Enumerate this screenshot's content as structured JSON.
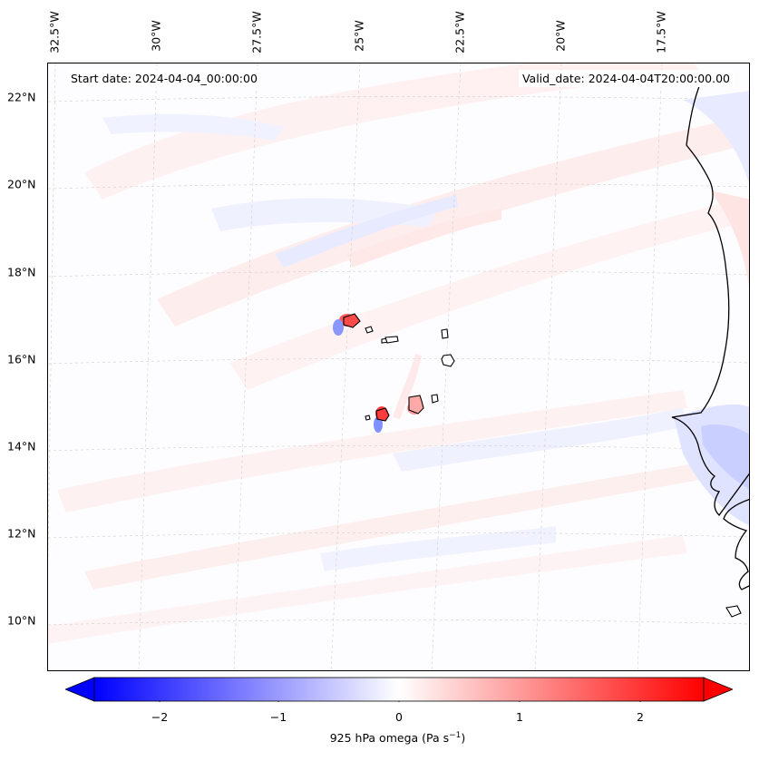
{
  "map": {
    "start_date_text": "Start date: 2024-04-04_00:00:00",
    "valid_date_text": "Valid_date: 2024-04-04T20:00:00.00",
    "lon_labels": [
      "32.5°W",
      "30°W",
      "27.5°W",
      "25°W",
      "22.5°W",
      "20°W",
      "17.5°W"
    ],
    "lat_labels": [
      "22°N",
      "20°N",
      "18°N",
      "16°N",
      "14°N",
      "12°N",
      "10°N"
    ],
    "background_color": "#fdfdff",
    "coastline_color": "#000000"
  },
  "colorbar": {
    "ticks": [
      "−2",
      "−1",
      "0",
      "1",
      "2"
    ],
    "label_prefix": "925 hPa omega (Pa s",
    "label_exp": "−1",
    "label_suffix": ")",
    "min_color": "#0000ff",
    "mid_color": "#ffffff",
    "max_color": "#ff0000"
  }
}
